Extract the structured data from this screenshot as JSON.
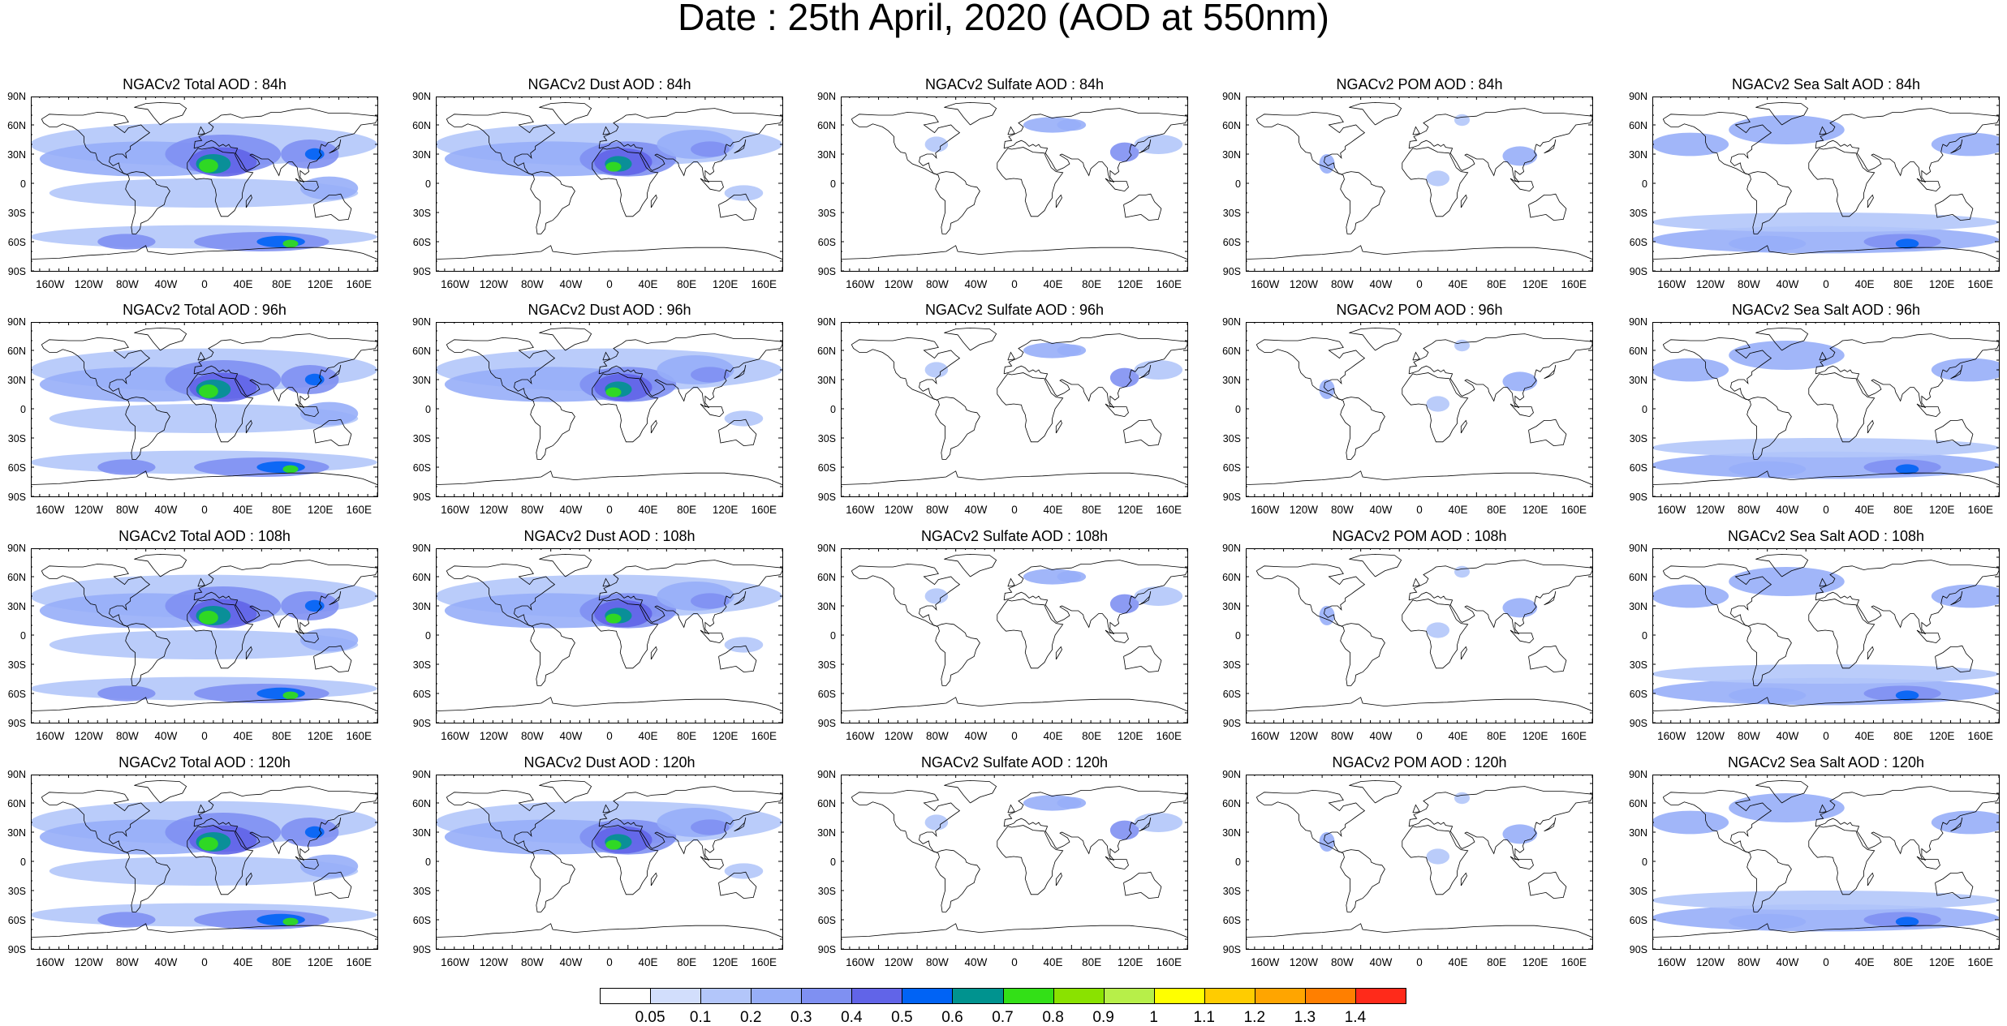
{
  "title": "Date : 25th April, 2020 (AOD at 550nm)",
  "lat_labels": [
    "90N",
    "60N",
    "30N",
    "0",
    "30S",
    "60S",
    "90S"
  ],
  "lon_labels": [
    "160W",
    "120W",
    "80W",
    "40W",
    "0",
    "40E",
    "80E",
    "120E",
    "160E"
  ],
  "panels": [
    {
      "title": "NGACv2 Total AOD : 84h",
      "species": "total",
      "hour": "84h"
    },
    {
      "title": "NGACv2 Dust AOD : 84h",
      "species": "dust",
      "hour": "84h"
    },
    {
      "title": "NGACv2 Sulfate AOD : 84h",
      "species": "sulfate",
      "hour": "84h"
    },
    {
      "title": "NGACv2 POM AOD : 84h",
      "species": "pom",
      "hour": "84h"
    },
    {
      "title": "NGACv2 Sea Salt AOD : 84h",
      "species": "seasalt",
      "hour": "84h"
    },
    {
      "title": "NGACv2 Total AOD : 96h",
      "species": "total",
      "hour": "96h"
    },
    {
      "title": "NGACv2 Dust AOD : 96h",
      "species": "dust",
      "hour": "96h"
    },
    {
      "title": "NGACv2 Sulfate AOD : 96h",
      "species": "sulfate",
      "hour": "96h"
    },
    {
      "title": "NGACv2 POM AOD : 96h",
      "species": "pom",
      "hour": "96h"
    },
    {
      "title": "NGACv2 Sea Salt AOD : 96h",
      "species": "seasalt",
      "hour": "96h"
    },
    {
      "title": "NGACv2 Total AOD : 108h",
      "species": "total",
      "hour": "108h"
    },
    {
      "title": "NGACv2 Dust AOD : 108h",
      "species": "dust",
      "hour": "108h"
    },
    {
      "title": "NGACv2 Sulfate AOD : 108h",
      "species": "sulfate",
      "hour": "108h"
    },
    {
      "title": "NGACv2 POM AOD : 108h",
      "species": "pom",
      "hour": "108h"
    },
    {
      "title": "NGACv2 Sea Salt AOD : 108h",
      "species": "seasalt",
      "hour": "108h"
    },
    {
      "title": "NGACv2 Total AOD : 120h",
      "species": "total",
      "hour": "120h"
    },
    {
      "title": "NGACv2 Dust AOD : 120h",
      "species": "dust",
      "hour": "120h"
    },
    {
      "title": "NGACv2 Sulfate AOD : 120h",
      "species": "sulfate",
      "hour": "120h"
    },
    {
      "title": "NGACv2 POM AOD : 120h",
      "species": "pom",
      "hour": "120h"
    },
    {
      "title": "NGACv2 Sea Salt  AOD : 120h",
      "species": "seasalt",
      "hour": "120h"
    }
  ],
  "colorbar": {
    "labels": [
      "0.05",
      "0.1",
      "0.2",
      "0.3",
      "0.4",
      "0.5",
      "0.6",
      "0.7",
      "0.8",
      "0.9",
      "1",
      "1.1",
      "1.2",
      "1.3",
      "1.4"
    ],
    "colors": [
      "#ffffff",
      "#d2defc",
      "#b3c6fa",
      "#97aef8",
      "#7f90f2",
      "#6164e8",
      "#0063f5",
      "#00938f",
      "#33e017",
      "#8ae200",
      "#b7ef49",
      "#ffff00",
      "#ffcc00",
      "#ffa500",
      "#ff7f00",
      "#ff2a1a"
    ]
  }
}
